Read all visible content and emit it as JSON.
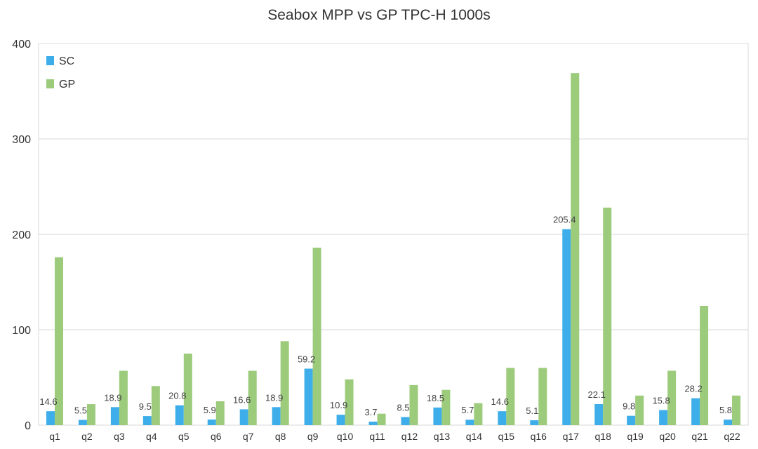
{
  "chart_data": {
    "type": "bar",
    "title": "Seabox MPP vs GP TPC-H 1000s",
    "xlabel": "",
    "ylabel": "",
    "ylim": [
      0,
      400
    ],
    "yticks": [
      0,
      100,
      200,
      300,
      400
    ],
    "grid": true,
    "legend_position": "top-left",
    "categories": [
      "q1",
      "q2",
      "q3",
      "q4",
      "q5",
      "q6",
      "q7",
      "q8",
      "q9",
      "q10",
      "q11",
      "q12",
      "q13",
      "q14",
      "q15",
      "q16",
      "q17",
      "q18",
      "q19",
      "q20",
      "q21",
      "q22"
    ],
    "series": [
      {
        "name": "SC",
        "color": "#3daee9",
        "values": [
          14.6,
          5.5,
          18.9,
          9.5,
          20.8,
          5.9,
          16.6,
          18.9,
          59.2,
          10.9,
          3.7,
          8.5,
          18.5,
          5.7,
          14.6,
          5.1,
          205.4,
          22.1,
          9.8,
          15.8,
          28.2,
          5.8
        ],
        "labels": [
          "14.6",
          "5.5",
          "18.9",
          "9.5",
          "20.8",
          "5.9",
          "16.6",
          "18.9",
          "59.2",
          "10.9",
          "3.7",
          "8.5",
          "18.5",
          "5.7",
          "14.6",
          "5.1",
          "205.4",
          "22.1",
          "9.8",
          "15.8",
          "28.2",
          "5.8"
        ]
      },
      {
        "name": "GP",
        "color": "#9ccb7c",
        "values": [
          176,
          22,
          57,
          41,
          75,
          25,
          57,
          88,
          186,
          48,
          12,
          42,
          37,
          23,
          60,
          60,
          369,
          228,
          31,
          57,
          125,
          31
        ]
      }
    ]
  }
}
